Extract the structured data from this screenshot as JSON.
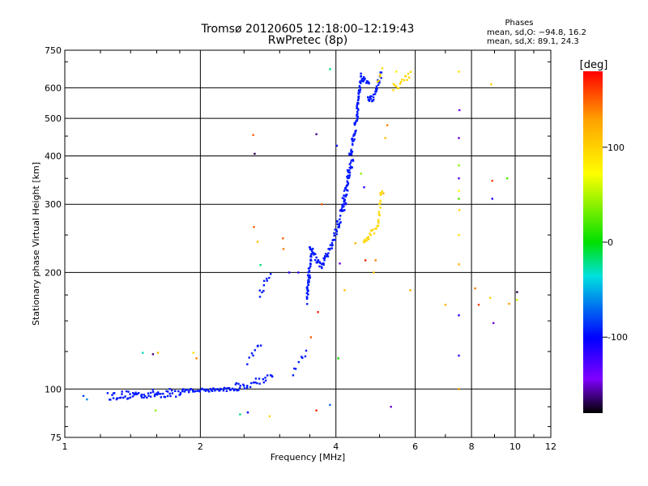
{
  "chart_data": {
    "type": "scatter",
    "title": "Tromsø 20120605 12:18:00–12:19:43",
    "subtitle": "RwPretec (8p)",
    "xlabel": "Frequency [MHz]",
    "ylabel": "Stationary phase Virtual Height [km]",
    "xscale": "log",
    "yscale": "log",
    "xlim": [
      1,
      12
    ],
    "ylim": [
      75,
      750
    ],
    "x_ticks": [
      1,
      2,
      4,
      6,
      8,
      10,
      12
    ],
    "x_gridlines": [
      2,
      4,
      6,
      8,
      10
    ],
    "y_ticks": [
      75,
      100,
      200,
      300,
      400,
      500,
      600,
      750
    ],
    "y_gridlines": [
      100,
      200,
      300,
      400,
      500,
      600
    ],
    "grid": true,
    "phases_box": {
      "title": "Phases",
      "line1": "mean, sd,O: −94.8, 16.2",
      "line2": "mean, sd,X: 89.1, 24.3"
    },
    "colorbar": {
      "label": "[deg]",
      "range": [
        -180,
        180
      ],
      "ticks": [
        100,
        0,
        -100
      ],
      "colors": [
        "#ff0000",
        "#ffa000",
        "#ffff00",
        "#00e000",
        "#00e0e0",
        "#0000ff",
        "#8000ff",
        "#000000"
      ]
    },
    "series": [
      {
        "name": "O-trace (blue)",
        "color": "#0018ff",
        "segments": [
          {
            "f1": 1.25,
            "f2": 1.82,
            "h1": 96,
            "h2": 98,
            "n": 70,
            "jh": 0.025,
            "jf": 0.005
          },
          {
            "f1": 1.82,
            "f2": 2.45,
            "h1": 99,
            "h2": 100,
            "n": 55,
            "jh": 0.01,
            "jf": 0.004
          },
          {
            "f1": 2.4,
            "f2": 2.9,
            "h1": 101,
            "h2": 108,
            "n": 25,
            "jh": 0.025,
            "jf": 0.006
          },
          {
            "f1": 2.55,
            "f2": 2.72,
            "h1": 118,
            "h2": 130,
            "n": 8,
            "jh": 0.02,
            "jf": 0.004
          },
          {
            "f1": 2.7,
            "f2": 2.85,
            "h1": 178,
            "h2": 195,
            "n": 10,
            "jh": 0.03,
            "jf": 0.006
          },
          {
            "f1": 3.2,
            "f2": 3.45,
            "h1": 110,
            "h2": 126,
            "n": 8,
            "jh": 0.02,
            "jf": 0.006
          },
          {
            "f1": 3.45,
            "f2": 3.52,
            "h1": 170,
            "h2": 225,
            "n": 45,
            "jh": 0.05,
            "jf": 0.004
          },
          {
            "f1": 3.5,
            "f2": 3.72,
            "h1": 235,
            "h2": 205,
            "n": 22,
            "jh": 0.02,
            "jf": 0.004
          },
          {
            "f1": 3.72,
            "f2": 3.95,
            "h1": 208,
            "h2": 240,
            "n": 22,
            "jh": 0.02,
            "jf": 0.004
          },
          {
            "f1": 3.95,
            "f2": 4.2,
            "h1": 240,
            "h2": 310,
            "n": 35,
            "jh": 0.035,
            "jf": 0.005
          },
          {
            "f1": 4.15,
            "f2": 4.35,
            "h1": 300,
            "h2": 400,
            "n": 45,
            "jh": 0.04,
            "jf": 0.006
          },
          {
            "f1": 4.3,
            "f2": 4.48,
            "h1": 400,
            "h2": 520,
            "n": 35,
            "jh": 0.03,
            "jf": 0.005
          },
          {
            "f1": 4.45,
            "f2": 4.55,
            "h1": 520,
            "h2": 640,
            "n": 30,
            "jh": 0.02,
            "jf": 0.004
          },
          {
            "f1": 4.55,
            "f2": 4.75,
            "h1": 640,
            "h2": 620,
            "n": 15,
            "jh": 0.02,
            "jf": 0.004
          },
          {
            "f1": 4.7,
            "f2": 4.85,
            "h1": 560,
            "h2": 560,
            "n": 12,
            "jh": 0.02,
            "jf": 0.004
          },
          {
            "f1": 4.85,
            "f2": 5.05,
            "h1": 570,
            "h2": 650,
            "n": 18,
            "jh": 0.02,
            "jf": 0.004
          }
        ]
      },
      {
        "name": "X-trace (yellow)",
        "color": "#ffd800",
        "segments": [
          {
            "f1": 4.6,
            "f2": 4.95,
            "h1": 238,
            "h2": 262,
            "n": 18,
            "jh": 0.02,
            "jf": 0.004
          },
          {
            "f1": 4.95,
            "f2": 5.05,
            "h1": 262,
            "h2": 330,
            "n": 18,
            "jh": 0.02,
            "jf": 0.004
          },
          {
            "f1": 5.35,
            "f2": 5.85,
            "h1": 605,
            "h2": 640,
            "n": 16,
            "jh": 0.03,
            "jf": 0.005
          },
          {
            "f1": 4.95,
            "f2": 5.05,
            "h1": 630,
            "h2": 660,
            "n": 5,
            "jh": 0.02,
            "jf": 0.004
          }
        ]
      },
      {
        "name": "scattered echoes",
        "points": [
          [
            1.1,
            96,
            -80
          ],
          [
            1.12,
            94,
            -60
          ],
          [
            1.49,
            124,
            -30
          ],
          [
            1.57,
            123,
            -160
          ],
          [
            1.61,
            124,
            120
          ],
          [
            1.59,
            88,
            40
          ],
          [
            1.93,
            124,
            90
          ],
          [
            1.96,
            120,
            140
          ],
          [
            2.45,
            86,
            -20
          ],
          [
            2.55,
            87,
            -100
          ],
          [
            2.62,
            453,
            150
          ],
          [
            2.64,
            405,
            -170
          ],
          [
            2.63,
            262,
            150
          ],
          [
            2.68,
            240,
            110
          ],
          [
            2.72,
            209,
            -20
          ],
          [
            2.85,
            85,
            100
          ],
          [
            3.05,
            245,
            150
          ],
          [
            3.06,
            230,
            140
          ],
          [
            3.15,
            200,
            -110
          ],
          [
            3.3,
            200,
            -120
          ],
          [
            3.52,
            136,
            150
          ],
          [
            3.62,
            455,
            -160
          ],
          [
            3.62,
            88,
            170
          ],
          [
            3.72,
            300,
            150
          ],
          [
            3.65,
            158,
            170
          ],
          [
            3.88,
            91,
            -70
          ],
          [
            3.88,
            670,
            -20
          ],
          [
            4.02,
            425,
            -100
          ],
          [
            4.05,
            120,
            5
          ],
          [
            4.08,
            211,
            -150
          ],
          [
            4.1,
            290,
            -100
          ],
          [
            4.18,
            180,
            110
          ],
          [
            4.2,
            300,
            -110
          ],
          [
            4.42,
            238,
            120
          ],
          [
            4.55,
            360,
            40
          ],
          [
            4.62,
            332,
            -120
          ],
          [
            4.65,
            215,
            170
          ],
          [
            4.85,
            200,
            110
          ],
          [
            4.9,
            215,
            140
          ],
          [
            5.1,
            320,
            120
          ],
          [
            5.15,
            445,
            110
          ],
          [
            5.2,
            480,
            140
          ],
          [
            5.3,
            90,
            -150
          ],
          [
            5.45,
            660,
            80
          ],
          [
            5.85,
            180,
            120
          ],
          [
            7.5,
            660,
            90
          ],
          [
            7.52,
            525,
            -140
          ],
          [
            7.5,
            445,
            -150
          ],
          [
            7.5,
            378,
            40
          ],
          [
            7.5,
            350,
            -130
          ],
          [
            7.5,
            325,
            70
          ],
          [
            7.5,
            310,
            20
          ],
          [
            7.52,
            290,
            100
          ],
          [
            7.5,
            250,
            90
          ],
          [
            7.5,
            210,
            120
          ],
          [
            7.5,
            155,
            -120
          ],
          [
            7.5,
            122,
            -120
          ],
          [
            7.5,
            100,
            130
          ],
          [
            7.0,
            165,
            120
          ],
          [
            8.15,
            182,
            140
          ],
          [
            8.3,
            165,
            160
          ],
          [
            8.8,
            172,
            100
          ],
          [
            8.95,
            148,
            -150
          ],
          [
            8.9,
            345,
            160
          ],
          [
            8.9,
            310,
            -110
          ],
          [
            8.85,
            612,
            100
          ],
          [
            9.6,
            350,
            20
          ],
          [
            9.7,
            166,
            130
          ],
          [
            10.1,
            178,
            -170
          ],
          [
            10.1,
            170,
            60
          ]
        ]
      }
    ]
  }
}
